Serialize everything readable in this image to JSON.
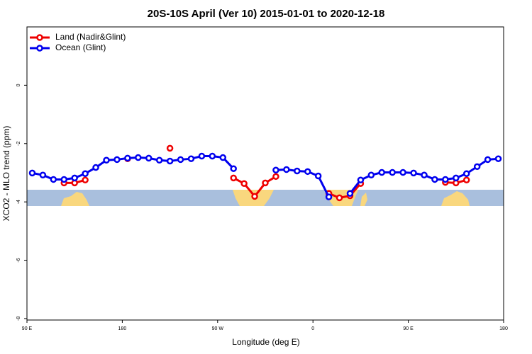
{
  "chart_data": {
    "type": "line",
    "title": "20S-10S April (Ver 10)   2015-01-01 to 2020-12-18",
    "xlabel": "Longitude (deg E)",
    "ylabel": "XCO2 - MLO trend (ppm)",
    "x": [
      95,
      105,
      115,
      125,
      135,
      145,
      155,
      165,
      175,
      185,
      195,
      205,
      215,
      225,
      235,
      245,
      255,
      265,
      275,
      285,
      295,
      305,
      315,
      325,
      335,
      345,
      355,
      365,
      375,
      385,
      395,
      405,
      415,
      425,
      435,
      445,
      455,
      465,
      475,
      485,
      495,
      505,
      515,
      525,
      535
    ],
    "xlim": [
      90,
      540
    ],
    "xticks": [
      {
        "value": 90,
        "label": "90 E"
      },
      180,
      {
        "value": 270,
        "label": "90 W"
      },
      {
        "value": 360,
        "label": "0"
      },
      {
        "value": 450,
        "label": "90 E"
      },
      {
        "value": 540,
        "label": "180"
      }
    ],
    "ylim": [
      -8.05,
      2
    ],
    "yticks": [
      0,
      -2,
      -4,
      -6,
      -8
    ],
    "legend": "top-left",
    "series": [
      {
        "name": "Land (Nadir&Glint)",
        "color": "#ee0000",
        "values": [
          null,
          null,
          null,
          -3.35,
          -3.35,
          -3.25,
          null,
          null,
          null,
          -2.52,
          null,
          null,
          null,
          -2.16,
          null,
          null,
          null,
          null,
          null,
          -3.18,
          -3.37,
          -3.81,
          -3.35,
          -3.13,
          null,
          null,
          null,
          null,
          -3.71,
          -3.86,
          -3.79,
          -3.37,
          null,
          null,
          null,
          null,
          null,
          null,
          null,
          -3.33,
          -3.35,
          -3.25,
          null,
          null,
          null
        ]
      },
      {
        "name": "Ocean (Glint)",
        "color": "#0000ee",
        "values": [
          -3.01,
          -3.08,
          -3.23,
          -3.23,
          -3.18,
          -3.03,
          -2.82,
          -2.57,
          -2.55,
          -2.5,
          -2.48,
          -2.5,
          -2.57,
          -2.6,
          -2.55,
          -2.52,
          -2.43,
          -2.43,
          -2.48,
          -2.86,
          null,
          null,
          null,
          -2.91,
          -2.89,
          -2.94,
          -2.96,
          -3.11,
          -3.83,
          null,
          -3.71,
          -3.25,
          -3.08,
          -2.99,
          -2.99,
          -2.99,
          -3.01,
          -3.08,
          -3.23,
          -3.23,
          -3.18,
          -3.03,
          -2.79,
          -2.55,
          -2.52
        ]
      }
    ]
  }
}
